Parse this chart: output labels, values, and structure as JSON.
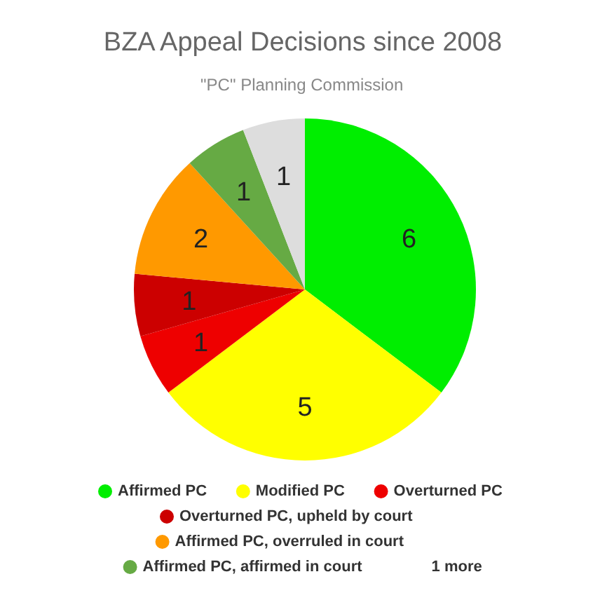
{
  "chart_data": {
    "type": "pie",
    "title": "BZA Appeal Decisions since 2008",
    "subtitle": "\"PC\"  Planning Commission",
    "categories": [
      "Affirmed PC",
      "Modified PC",
      "Overturned PC",
      "Overturned PC, upheld by court",
      "Affirmed PC, overruled in court",
      "Affirmed PC, affirmed in court",
      null
    ],
    "values": [
      6,
      5,
      1,
      1,
      2,
      1,
      1
    ],
    "colors": [
      "#00ee00",
      "#ffff00",
      "#ee0000",
      "#cc0000",
      "#ff9900",
      "#66aa44",
      "#dddddd"
    ],
    "data_labels": true,
    "legend": "bottom",
    "annotations": [
      "1 more"
    ]
  }
}
